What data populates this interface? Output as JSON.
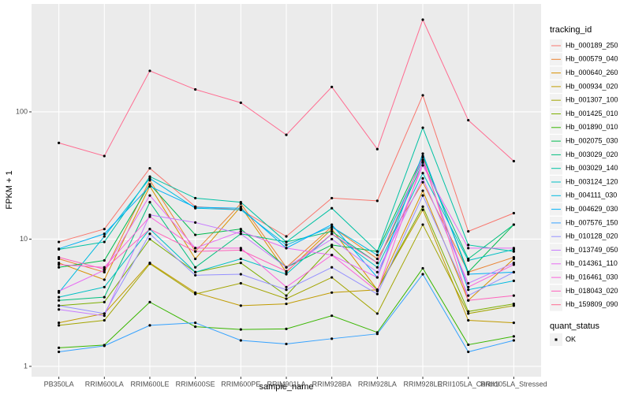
{
  "chart_data": {
    "type": "line",
    "x_label": "sample_name",
    "y_label": "FPKM + 1",
    "legend_title": "tracking_id",
    "categories": [
      "PB350LA",
      "RRIM600LA",
      "RRIM600LE",
      "RRIM600SE",
      "RRIM600PE",
      "RRIM901LA",
      "RRIM928BA",
      "RRIM928LA",
      "RRIM928LE",
      "RRII105LA_Control",
      "RRII105LA_Stressed"
    ],
    "series": [
      {
        "name": "Hb_000189_250",
        "color": "#F8766D",
        "values": [
          9.5,
          12,
          36,
          18,
          17,
          10.5,
          21,
          20,
          135,
          11.5,
          16
        ]
      },
      {
        "name": "Hb_000579_040",
        "color": "#EA8331",
        "values": [
          7,
          5.5,
          29,
          8,
          19,
          6,
          12.5,
          7,
          28,
          5.5,
          7.2
        ]
      },
      {
        "name": "Hb_000640_260",
        "color": "#D89000",
        "values": [
          6.5,
          4.8,
          26,
          7,
          18,
          5.5,
          12,
          4,
          24,
          3.3,
          7
        ]
      },
      {
        "name": "Hb_000934_020",
        "color": "#C09B00",
        "values": [
          2.2,
          2.6,
          6.5,
          3.8,
          3.0,
          3.1,
          3.8,
          4.0,
          17,
          2.3,
          2.2
        ]
      },
      {
        "name": "Hb_001307_100",
        "color": "#A3A500",
        "values": [
          2.1,
          2.3,
          6.4,
          3.7,
          4.5,
          3.4,
          5,
          2.6,
          13,
          2.6,
          3.0
        ]
      },
      {
        "name": "Hb_001425_010",
        "color": "#7CAE00",
        "values": [
          3.0,
          3.2,
          10,
          5.5,
          6.5,
          3.6,
          8.7,
          4,
          18,
          2.7,
          3.1
        ]
      },
      {
        "name": "Hb_001890_010",
        "color": "#39B600",
        "values": [
          1.4,
          1.47,
          3.2,
          2.05,
          1.95,
          1.97,
          2.5,
          1.85,
          5.9,
          1.48,
          1.72
        ]
      },
      {
        "name": "Hb_002075_030",
        "color": "#00BB4E",
        "values": [
          6,
          6.8,
          27,
          10.8,
          12,
          6,
          9,
          8,
          45,
          5.5,
          13
        ]
      },
      {
        "name": "Hb_003029_020",
        "color": "#00BF7D",
        "values": [
          3.3,
          3.5,
          19.5,
          6,
          11,
          9.5,
          11.5,
          6.5,
          40,
          7,
          13
        ]
      },
      {
        "name": "Hb_003029_140",
        "color": "#00C1A3",
        "values": [
          8.3,
          9.5,
          31,
          21,
          19.5,
          9.5,
          17.5,
          8,
          75,
          9,
          8
        ]
      },
      {
        "name": "Hb_003124_120",
        "color": "#00BFC4",
        "values": [
          3.5,
          4.2,
          12,
          5.5,
          7,
          5.3,
          11,
          6,
          33,
          6.8,
          8.3
        ]
      },
      {
        "name": "Hb_004111_030",
        "color": "#00BAE0",
        "values": [
          3.8,
          10.5,
          30,
          17.5,
          17,
          9,
          12.5,
          7.5,
          42,
          4,
          4.7
        ]
      },
      {
        "name": "Hb_004629_030",
        "color": "#00B0F6",
        "values": [
          8.4,
          11,
          26,
          17.8,
          17.5,
          8.5,
          13,
          5,
          47,
          5.3,
          5.5
        ]
      },
      {
        "name": "Hb_007576_150",
        "color": "#35A2FF",
        "values": [
          1.3,
          1.45,
          2.1,
          2.2,
          1.6,
          1.5,
          1.65,
          1.8,
          5.3,
          1.3,
          1.6
        ]
      },
      {
        "name": "Hb_010128_020",
        "color": "#9590FF",
        "values": [
          3.0,
          2.6,
          11,
          5.2,
          5.3,
          4,
          6,
          3.7,
          22,
          3.6,
          5.5
        ]
      },
      {
        "name": "Hb_013749_050",
        "color": "#C77CFF",
        "values": [
          2.8,
          2.5,
          15.5,
          13.5,
          11,
          6,
          10,
          5.5,
          30,
          4.5,
          6.5
        ]
      },
      {
        "name": "Hb_014361_110",
        "color": "#E76BF3",
        "values": [
          3.9,
          5.7,
          22,
          8.5,
          11.5,
          8.5,
          7.5,
          5,
          38,
          8.5,
          8.5
        ]
      },
      {
        "name": "Hb_016461_030",
        "color": "#FA62DB",
        "values": [
          6.3,
          6,
          15,
          8.5,
          8.5,
          4.2,
          7.5,
          3.9,
          41,
          4.2,
          6.3
        ]
      },
      {
        "name": "Hb_018043_020",
        "color": "#FF62BC",
        "values": [
          7.2,
          5.8,
          12,
          8,
          8.2,
          5.6,
          11,
          6.5,
          44,
          3.3,
          3.6
        ]
      },
      {
        "name": "Hb_159809_090",
        "color": "#FF6C91",
        "values": [
          57,
          45,
          210,
          150,
          118,
          66,
          157,
          51,
          530,
          86,
          41
        ]
      }
    ],
    "ylim": [
      0.83,
      705
    ],
    "yticks": [
      1,
      10,
      100
    ],
    "log_scale": true,
    "grid": true,
    "legend_position": "right",
    "point_color": "#000000",
    "shape_legend": {
      "title": "quant_status",
      "labels": [
        "OK"
      ]
    }
  }
}
